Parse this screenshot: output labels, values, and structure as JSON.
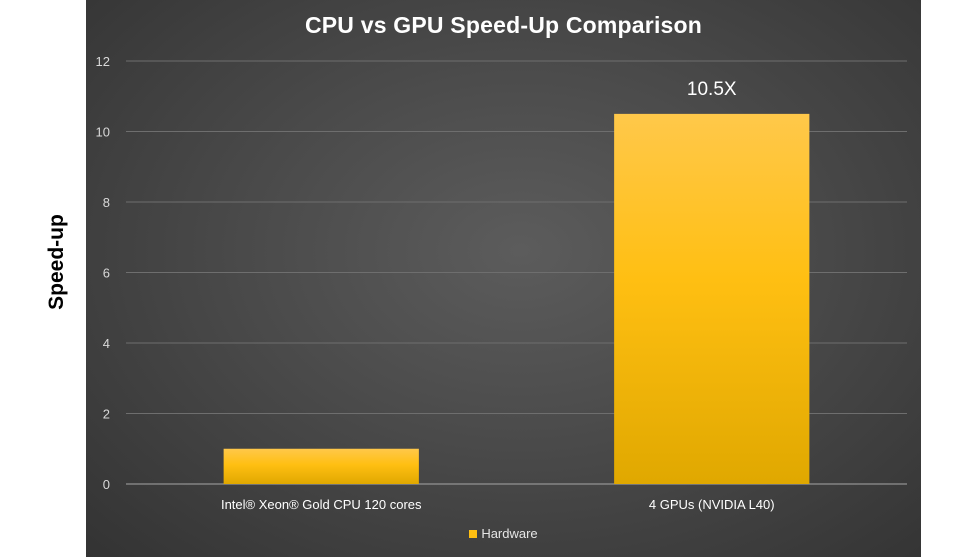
{
  "chart_data": {
    "type": "bar",
    "title": "CPU vs GPU Speed-Up Comparison",
    "xlabel": "",
    "ylabel": "Speed-up",
    "ylim": [
      0,
      12
    ],
    "yticks": [
      0,
      2,
      4,
      6,
      8,
      10,
      12
    ],
    "grid": true,
    "categories": [
      "Intel® Xeon® Gold CPU 120 cores",
      "4 GPUs (NVIDIA L40)"
    ],
    "series": [
      {
        "name": "Hardware",
        "values": [
          1,
          10.5
        ]
      }
    ],
    "data_labels": [
      "",
      "10.5X"
    ],
    "legend": {
      "position": "bottom",
      "entries": [
        "Hardware"
      ]
    }
  },
  "colors": {
    "bar_top": "#ffc84a",
    "bar_mid": "#ffbf12",
    "bar_bottom": "#e0a800",
    "gridline": "#6e6e6e",
    "axis": "#a6a6a6"
  }
}
